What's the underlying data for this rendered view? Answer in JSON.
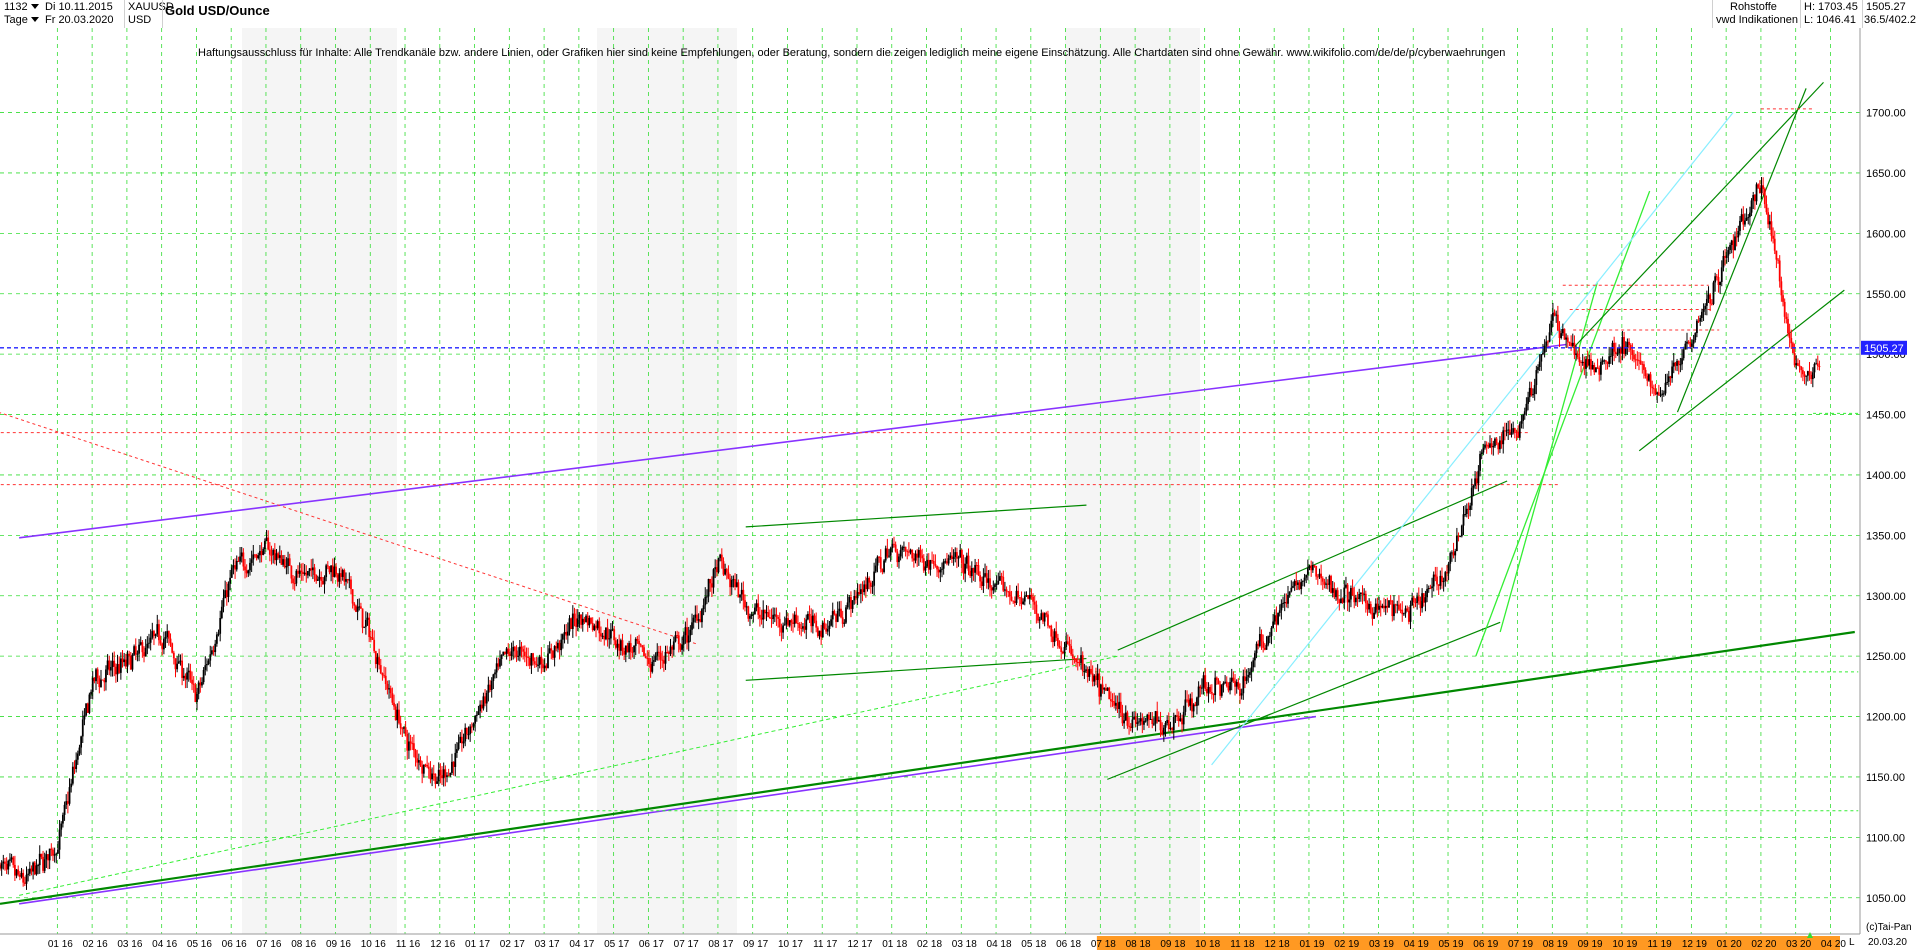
{
  "header": {
    "count": "1132",
    "date_from": "Di 10.11.2015",
    "symbol": "XAUUSD",
    "period": "Tage",
    "date_to": "Fr 20.03.2020",
    "currency": "USD",
    "title": "Gold USD/Ounce",
    "category": "Rohstoffe",
    "source": "vwd Indikationen",
    "high": "H: 1703.45",
    "low": "L: 1046.41",
    "last_price": "1505.27",
    "range_info": "36.5/402.2"
  },
  "disclaimer": "Haftungsausschluss für Inhalte: Alle Trendkanäle bzw. andere Linien, oder Grafiken hier sind keine Empfehlungen, oder Beratung, sondern die zeigen lediglich meine eigene Einschätzung. Alle Chartdaten sind ohne Gewähr.  www.wikifolio.com/de/de/p/cyberwaehrungen",
  "footer": {
    "copyright": "(c)Tai-Pan",
    "end_date": "20.03.20",
    "scale_mode": "L"
  },
  "current_price_label": "1505.27",
  "colors": {
    "up": "#000000",
    "down": "#ff0000",
    "grid": "#33dd33",
    "price_line": "#2222ff",
    "trend_green": "#008800",
    "trend_purple": "#8833ff",
    "light_green": "#33ee33",
    "cyan": "#88eeff",
    "resistance_red": "#ff3333",
    "future_axis": "#ff9922"
  },
  "chart_data": {
    "type": "line",
    "title": "Gold USD/Ounce",
    "subtype": "candlestick",
    "ylim": [
      1020,
      1770
    ],
    "yticks": [
      "1050.00",
      "1100.00",
      "1150.00",
      "1200.00",
      "1250.00",
      "1300.00",
      "1350.00",
      "1400.00",
      "1450.00",
      "1500.00",
      "1550.00",
      "1600.00",
      "1650.00",
      "1700.00"
    ],
    "xticks": [
      "01 16",
      "02 16",
      "03 16",
      "04 16",
      "05 16",
      "06 16",
      "07 16",
      "08 16",
      "09 16",
      "10 16",
      "11 16",
      "12 16",
      "01 17",
      "02 17",
      "03 17",
      "04 17",
      "05 17",
      "06 17",
      "07 17",
      "08 17",
      "09 17",
      "10 17",
      "11 17",
      "12 17",
      "01 18",
      "02 18",
      "03 18",
      "04 18",
      "05 18",
      "06 18",
      "07 18",
      "08 18",
      "09 18",
      "10 18",
      "11 18",
      "12 18",
      "01 19",
      "02 19",
      "03 19",
      "04 19",
      "05 19",
      "06 19",
      "07 19",
      "08 19",
      "09 19",
      "10 19",
      "11 19",
      "12 19",
      "01 20",
      "02 20",
      "03 20",
      "04 20"
    ],
    "x_start": "2015-11",
    "x_end": "2020-04",
    "grid": true,
    "price_line": 1505.27,
    "series": [
      {
        "values": [
          [
            "2015-11",
            1085
          ],
          [
            "2015-12",
            1062
          ],
          [
            "2016-01",
            1095
          ],
          [
            "2016-02",
            1230
          ],
          [
            "2016-03",
            1245
          ],
          [
            "2016-04",
            1270
          ],
          [
            "2016-05",
            1215
          ],
          [
            "2016-06",
            1320
          ],
          [
            "2016-07",
            1340
          ],
          [
            "2016-08",
            1315
          ],
          [
            "2016-09",
            1325
          ],
          [
            "2016-10",
            1265
          ],
          [
            "2016-11",
            1180
          ],
          [
            "2016-12",
            1145
          ],
          [
            "2017-01",
            1200
          ],
          [
            "2017-02",
            1255
          ],
          [
            "2017-03",
            1245
          ],
          [
            "2017-04",
            1285
          ],
          [
            "2017-05",
            1265
          ],
          [
            "2017-06",
            1245
          ],
          [
            "2017-07",
            1260
          ],
          [
            "2017-08",
            1325
          ],
          [
            "2017-09",
            1285
          ],
          [
            "2017-10",
            1280
          ],
          [
            "2017-11",
            1275
          ],
          [
            "2017-12",
            1300
          ],
          [
            "2018-01",
            1340
          ],
          [
            "2018-02",
            1330
          ],
          [
            "2018-03",
            1325
          ],
          [
            "2018-04",
            1305
          ],
          [
            "2018-05",
            1295
          ],
          [
            "2018-06",
            1255
          ],
          [
            "2018-07",
            1220
          ],
          [
            "2018-08",
            1195
          ],
          [
            "2018-09",
            1195
          ],
          [
            "2018-10",
            1225
          ],
          [
            "2018-11",
            1225
          ],
          [
            "2018-12",
            1285
          ],
          [
            "2019-01",
            1320
          ],
          [
            "2019-02",
            1300
          ],
          [
            "2019-03",
            1290
          ],
          [
            "2019-04",
            1285
          ],
          [
            "2019-05",
            1325
          ],
          [
            "2019-06",
            1420
          ],
          [
            "2019-07",
            1440
          ],
          [
            "2019-08",
            1530
          ],
          [
            "2019-09",
            1485
          ],
          [
            "2019-10",
            1510
          ],
          [
            "2019-11",
            1465
          ],
          [
            "2019-12",
            1520
          ],
          [
            "2020-01",
            1580
          ],
          [
            "2020-02",
            1640
          ],
          [
            "2020-03",
            1485
          ]
        ]
      }
    ]
  }
}
